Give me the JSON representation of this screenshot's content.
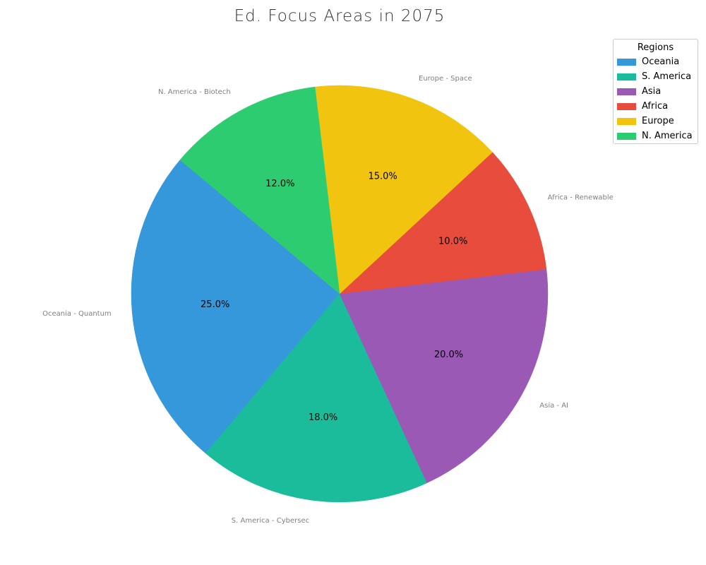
{
  "chart_data": {
    "type": "pie",
    "title": "Ed. Focus Areas in 2075",
    "start_angle_deg": 140,
    "direction": "counterclockwise",
    "slices": [
      {
        "label": "Oceania - Quantum",
        "region": "Oceania",
        "value": 25.0,
        "pct_label": "25.0%",
        "color": "#3498db"
      },
      {
        "label": "S. America - Cybersec",
        "region": "S. America",
        "value": 18.0,
        "pct_label": "18.0%",
        "color": "#1abc9c"
      },
      {
        "label": "Asia - AI",
        "region": "Asia",
        "value": 20.0,
        "pct_label": "20.0%",
        "color": "#9b59b6"
      },
      {
        "label": "Africa - Renewable",
        "region": "Africa",
        "value": 10.0,
        "pct_label": "10.0%",
        "color": "#e74c3c"
      },
      {
        "label": "Europe - Space",
        "region": "Europe",
        "value": 15.0,
        "pct_label": "15.0%",
        "color": "#f1c40f"
      },
      {
        "label": "N. America - Biotech",
        "region": "N. America",
        "value": 12.0,
        "pct_label": "12.0%",
        "color": "#2ecc71"
      }
    ],
    "legend": {
      "title": "Regions",
      "placement": "top-right",
      "entries": [
        "Oceania",
        "S. America",
        "Asia",
        "Africa",
        "Europe",
        "N. America"
      ]
    }
  }
}
